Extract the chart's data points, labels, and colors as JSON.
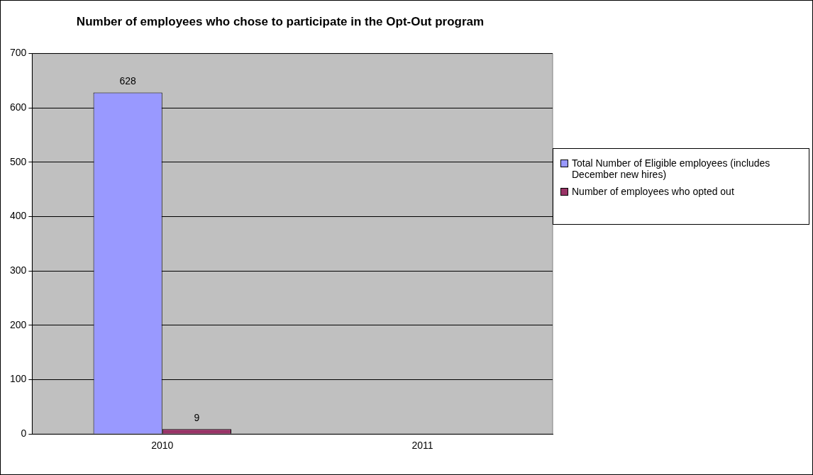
{
  "chart_data": {
    "type": "bar",
    "title": "Number of employees who chose to participate in the Opt-Out program",
    "categories": [
      "2010",
      "2011"
    ],
    "series": [
      {
        "name": "Total Number of Eligible employees (includes December new hires)",
        "color": "#9999ff",
        "values": [
          628,
          null
        ]
      },
      {
        "name": "Number of employees who opted out",
        "color": "#993366",
        "values": [
          9,
          null
        ]
      }
    ],
    "ylim": [
      0,
      700
    ],
    "yticks": [
      0,
      100,
      200,
      300,
      400,
      500,
      600,
      700
    ],
    "grid": "y",
    "legend": "right",
    "data_labels": true
  }
}
